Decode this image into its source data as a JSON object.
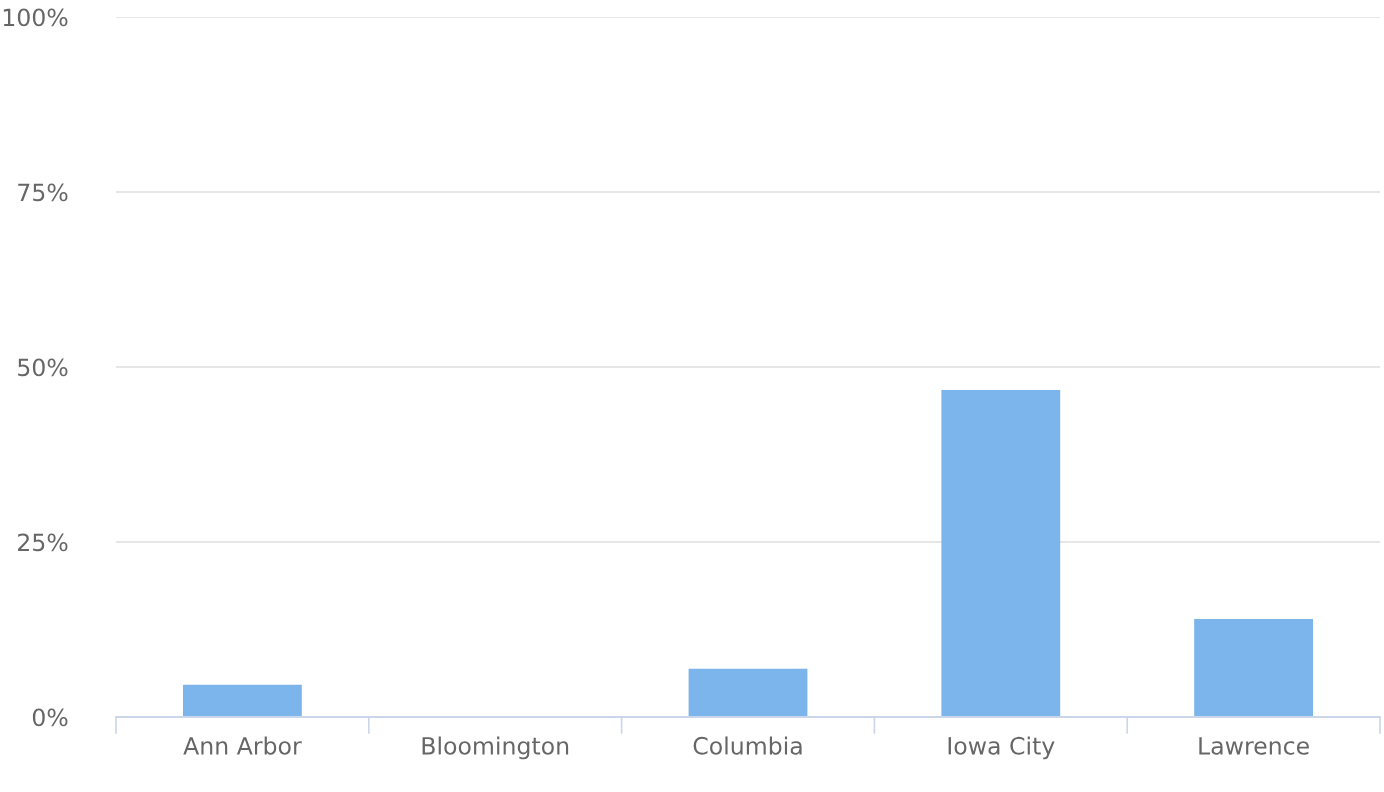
{
  "chart_data": {
    "type": "bar",
    "categories": [
      "Ann Arbor",
      "Bloomington",
      "Columbia",
      "Iowa City",
      "Lawrence"
    ],
    "values": [
      4.6,
      0,
      6.9,
      46.7,
      14
    ],
    "color": "#7cb5ec",
    "ylim": [
      0,
      100
    ],
    "yticks": [
      {
        "value": 0,
        "label": "0%"
      },
      {
        "value": 25,
        "label": "25%"
      },
      {
        "value": 50,
        "label": "50%"
      },
      {
        "value": 75,
        "label": "75%"
      },
      {
        "value": 100,
        "label": "100%"
      }
    ],
    "grid": "y",
    "legend": false
  }
}
